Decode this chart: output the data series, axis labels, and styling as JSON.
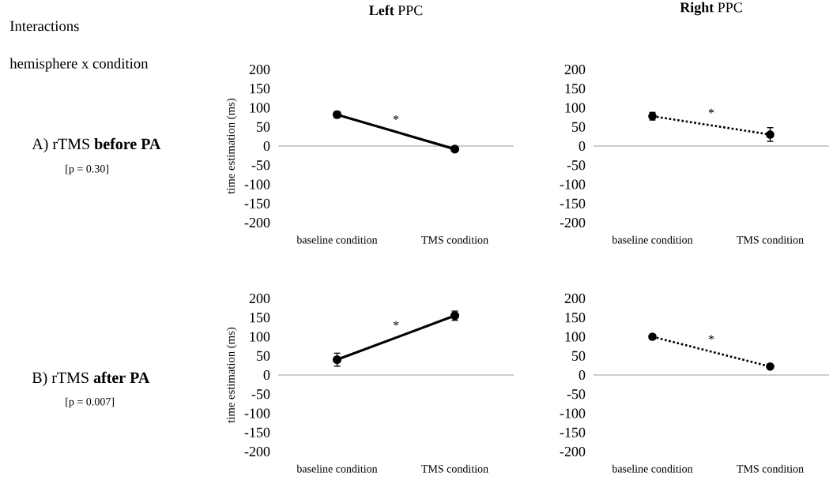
{
  "chart_data": [
    {
      "type": "line",
      "title": "**Left** PPC",
      "ylabel": "time estimation (ms)",
      "categories": [
        "baseline condition",
        "TMS condition"
      ],
      "series": [
        {
          "color": "#000000",
          "values": [
            82,
            -8
          ],
          "errors": [
            8,
            5
          ]
        }
      ],
      "ylim": [
        -200,
        200
      ],
      "yticks": [
        -200,
        -150,
        -100,
        -50,
        0,
        50,
        100,
        150,
        200
      ],
      "marker": "circle",
      "line_style": "solid",
      "annotations": [
        "*",
        "Interactions",
        "hemisphere x condition",
        "A)  rTMS **before PA**",
        "[p = 0.30]"
      ]
    },
    {
      "type": "line",
      "title": "**Right** PPC",
      "categories": [
        "baseline condition",
        "TMS condition"
      ],
      "series": [
        {
          "color": "#000000",
          "values": [
            78,
            30
          ],
          "errors": [
            10,
            18
          ]
        }
      ],
      "ylim": [
        -200,
        200
      ],
      "yticks": [
        -200,
        -150,
        -100,
        -50,
        0,
        50,
        100,
        150,
        200
      ],
      "marker": "circle",
      "line_style": "dotted",
      "annotations": [
        "*"
      ]
    },
    {
      "type": "line",
      "ylabel": "time estimation (ms)",
      "categories": [
        "baseline condition",
        "TMS condition"
      ],
      "series": [
        {
          "color": "#000000",
          "values": [
            40,
            155
          ],
          "errors": [
            17,
            12
          ]
        }
      ],
      "ylim": [
        -200,
        200
      ],
      "yticks": [
        -200,
        -150,
        -100,
        -50,
        0,
        50,
        100,
        150,
        200
      ],
      "marker": "circle",
      "line_style": "solid",
      "annotations": [
        "*",
        "B)  rTMS **after PA**",
        "[p = 0.007]"
      ]
    },
    {
      "type": "line",
      "categories": [
        "baseline condition",
        "TMS condition"
      ],
      "series": [
        {
          "color": "#000000",
          "values": [
            100,
            22
          ],
          "errors": [
            5,
            4
          ]
        }
      ],
      "ylim": [
        -200,
        200
      ],
      "yticks": [
        -200,
        -150,
        -100,
        -50,
        0,
        50,
        100,
        150,
        200
      ],
      "marker": "circle",
      "line_style": "dotted",
      "annotations": [
        "*"
      ]
    }
  ]
}
